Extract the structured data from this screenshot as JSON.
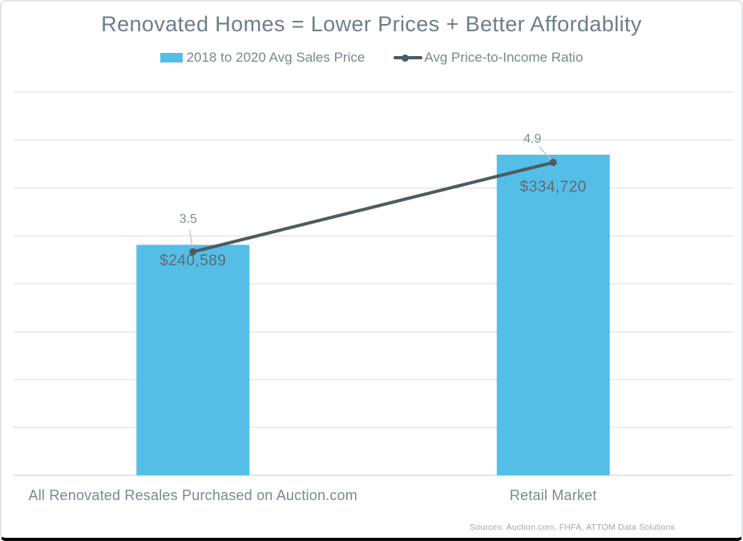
{
  "chart_data": {
    "type": "bar",
    "combo": "bar+line",
    "title": "Renovated Homes = Lower Prices + Better Affordablity",
    "categories": [
      "All Renovated Resales Purchased on Auction.com",
      "Retail Market"
    ],
    "series": [
      {
        "name": "2018 to 2020 Avg Sales Price",
        "type": "bar",
        "axis": "primary",
        "values": [
          240589,
          334720
        ],
        "labels": [
          "$240,589",
          "$334,720"
        ],
        "color": "#55bee6"
      },
      {
        "name": "Avg Price-to-Income Ratio",
        "type": "line",
        "axis": "secondary",
        "values": [
          3.5,
          4.9
        ],
        "labels": [
          "3.5",
          "4.9"
        ],
        "color": "#4e5a64"
      }
    ],
    "xlabel": "",
    "ylabel": "",
    "ylim": [
      0,
      400000
    ],
    "y2lim": [
      0,
      6
    ],
    "gridline_interval": 50000,
    "grid": true,
    "legend_position": "top",
    "source": "Sources: Auction.com, FHFA, ATTOM Data Solutions",
    "colors": {
      "bar": "#55bee6",
      "line": "#4e5a64",
      "gridline": "#e4e8eb",
      "baseline": "#d8dde0",
      "leader": "#b9c0c6",
      "title_text": "#6e7d89",
      "legend_text": "#7b8691",
      "value_label_text": "#5e6973",
      "ratio_label_text": "#818b95",
      "category_text": "#7d8893",
      "source_text": "#9fa7ae"
    }
  }
}
